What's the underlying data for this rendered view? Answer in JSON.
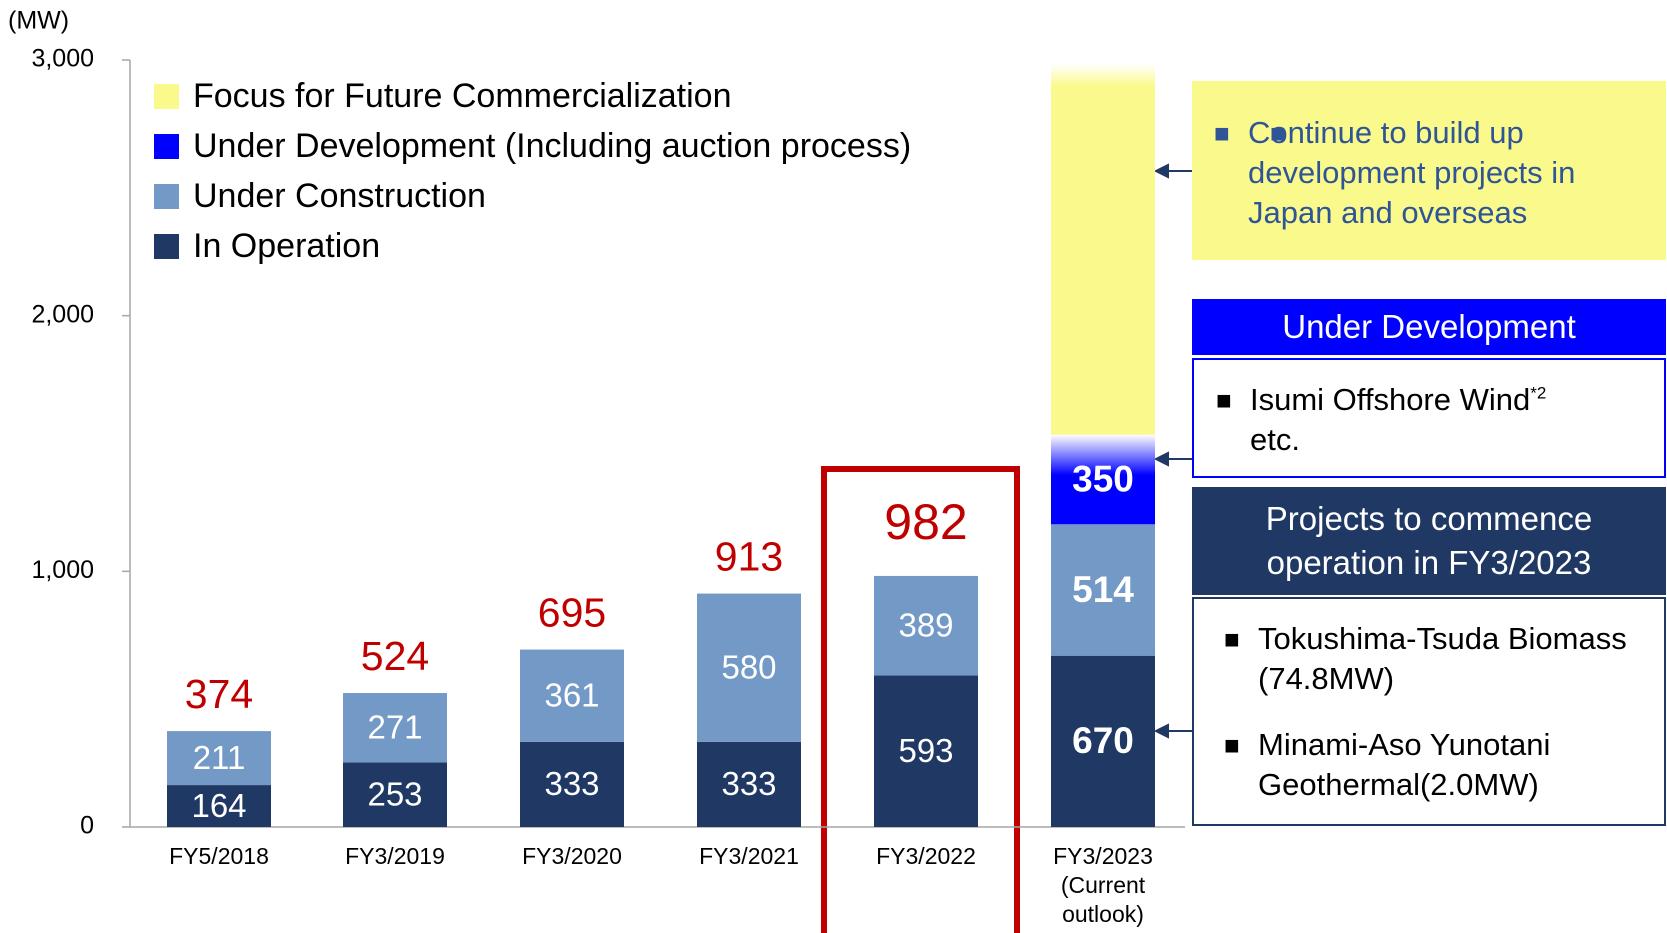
{
  "chart_data": {
    "type": "bar",
    "stacked": true,
    "y_unit": "(MW)",
    "categories": [
      "FY5/2018",
      "FY3/2019",
      "FY3/2020",
      "FY3/2021",
      "FY3/2022",
      "FY3/2023\n(Current\noutlook)"
    ],
    "series": [
      {
        "name": "In Operation",
        "color": "#203864",
        "values": [
          164,
          253,
          333,
          333,
          593,
          670
        ]
      },
      {
        "name": "Under Construction",
        "color": "#7399c6",
        "values": [
          211,
          271,
          361,
          580,
          389,
          514
        ]
      },
      {
        "name": "Under Development (Including auction process)",
        "color": "#0000ff",
        "values": [
          null,
          null,
          null,
          null,
          null,
          350
        ]
      },
      {
        "name": "Focus for Future Commercialization",
        "color": "#fafa8c",
        "values": [
          null,
          null,
          null,
          null,
          null,
          1450
        ]
      }
    ],
    "totals": [
      374,
      524,
      695,
      913,
      982,
      null
    ],
    "ylim": [
      0,
      3000
    ],
    "yticks": [
      0,
      {
        "value": 1000,
        "label": "1,000"
      },
      {
        "value": 2000,
        "label": "2,000"
      },
      {
        "value": 3000,
        "label": "3,000"
      }
    ],
    "legend": "top-left",
    "annotations": {
      "future": "Continue to build up development projects in Japan and overseas",
      "dev_header": "Under Development",
      "dev_item": "Isumi Offshore Wind",
      "dev_sup": "*2",
      "dev_item_more": "etc.",
      "ops_header": "Projects to commence operation in FY3/2023",
      "ops_items": [
        "Tokushima-Tsuda Biomass (74.8MW)",
        "Minami-Aso Yunotani Geothermal(2.0MW)"
      ]
    }
  }
}
